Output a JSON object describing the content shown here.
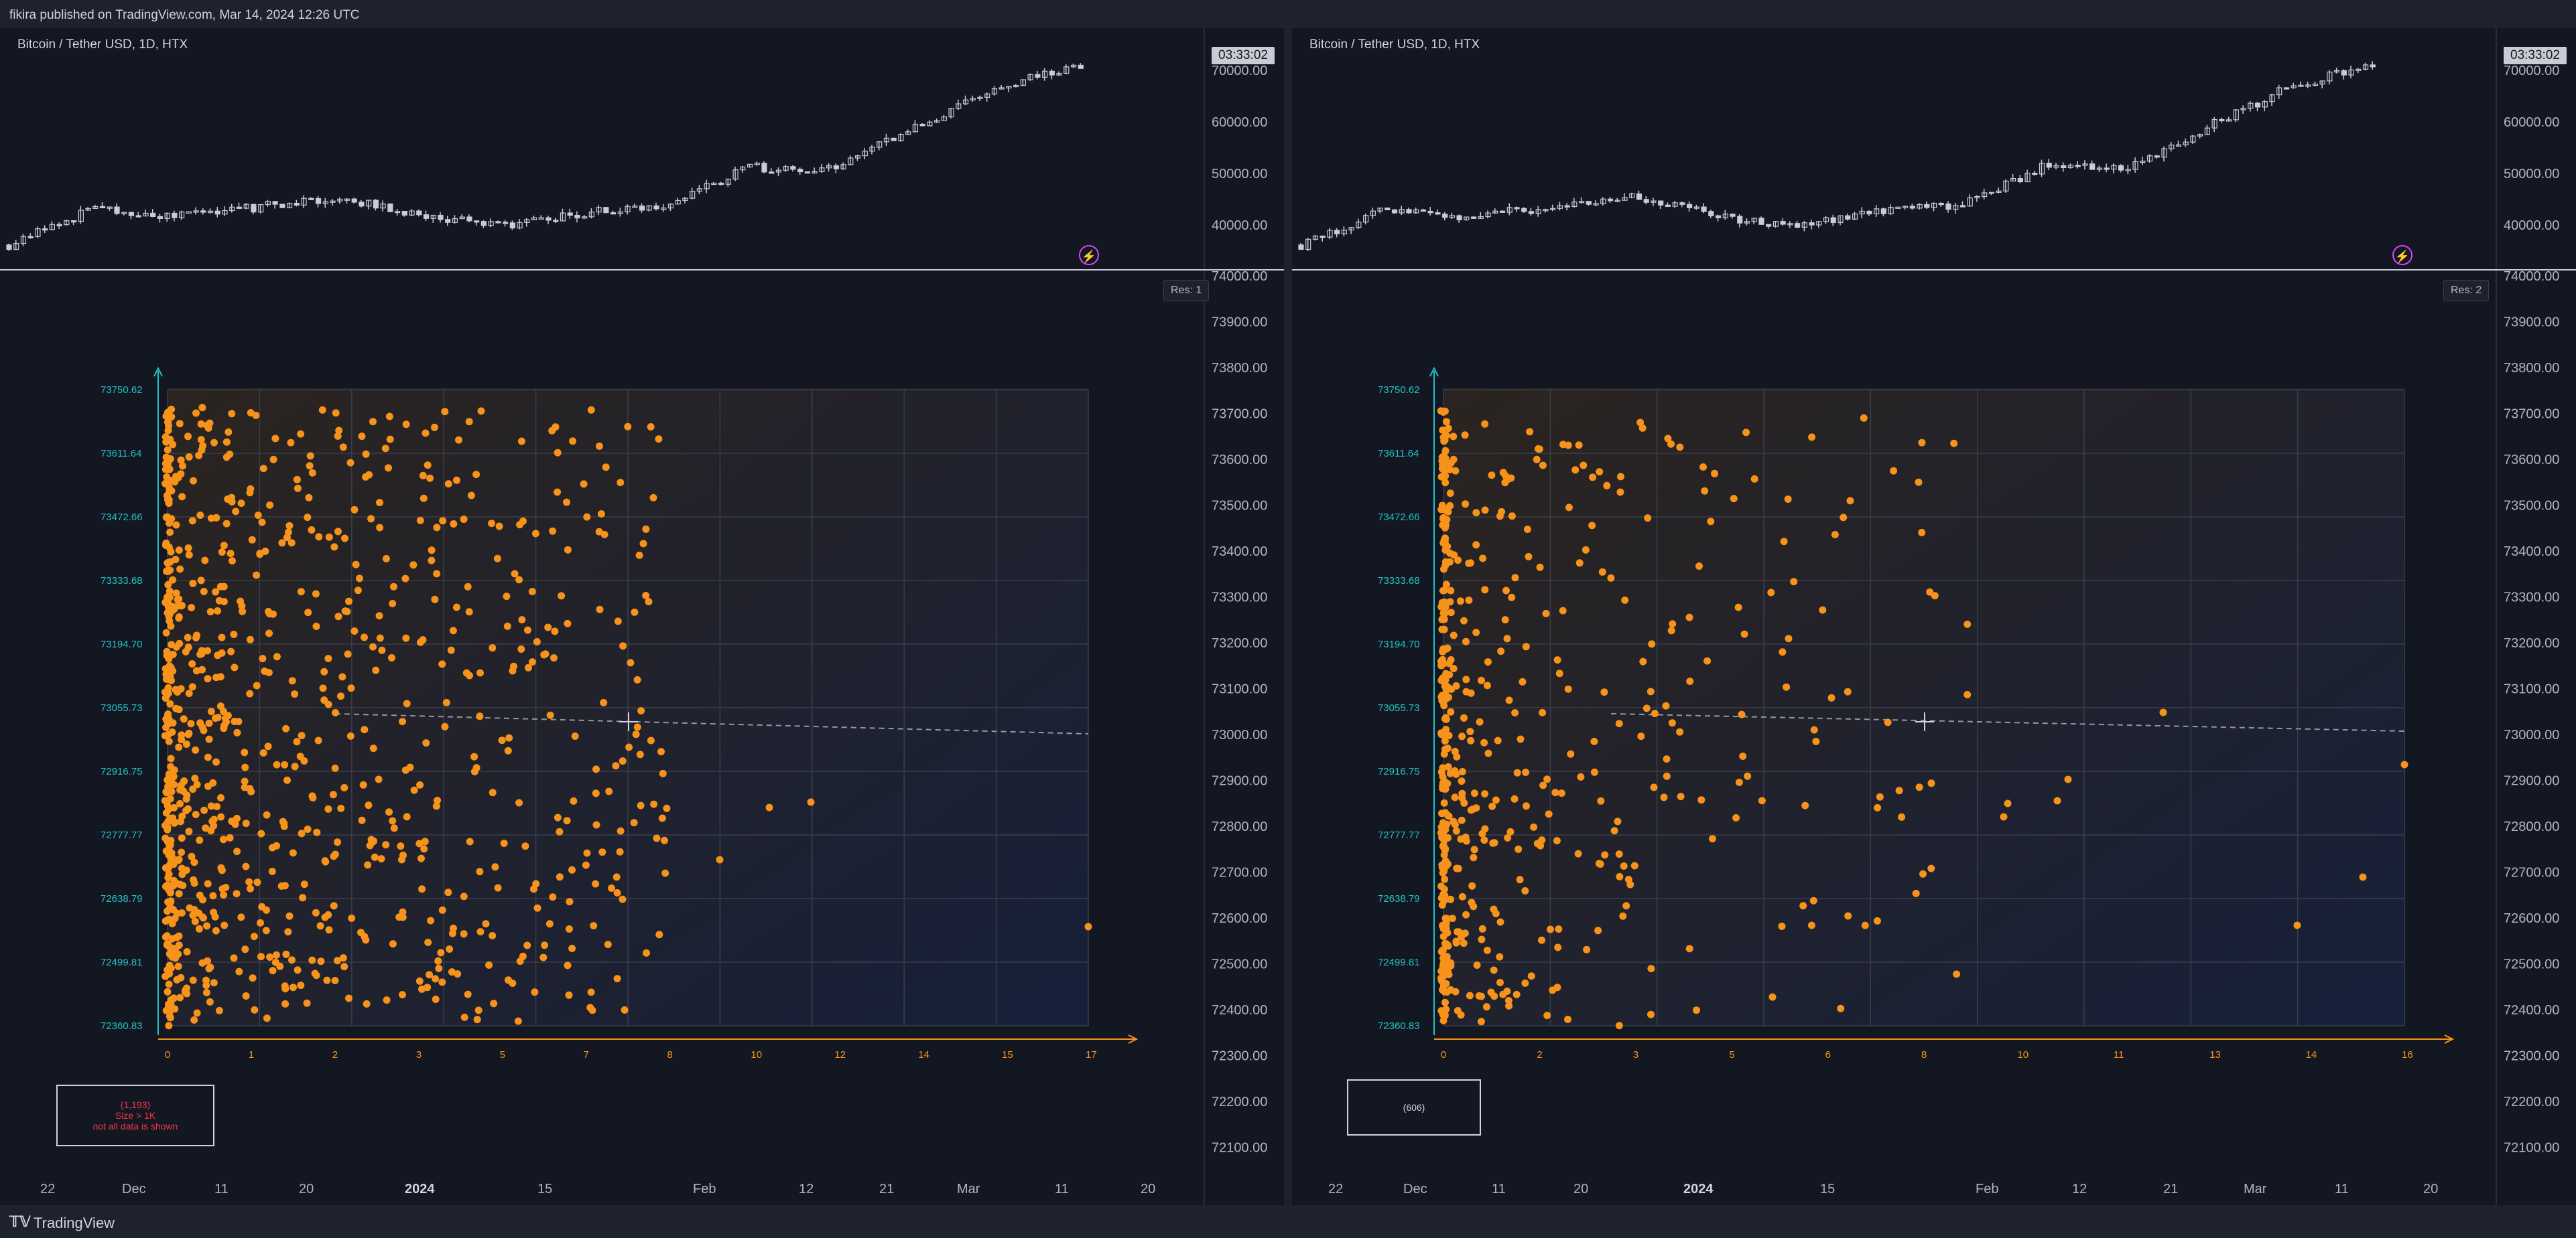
{
  "header": {
    "published": "fikira published on TradingView.com, Mar 14, 2024 12:26 UTC"
  },
  "footer": {
    "brand": "TradingView",
    "logo_icon": "tradingview-logo-icon"
  },
  "panels": [
    {
      "symbol": "Bitcoin / Tether USD, 1D, HTX",
      "countdown": "03:33:02",
      "res": "Res: 1",
      "info_lines": [
        "(1,193)",
        "Size > 1K",
        "not all data is shown"
      ],
      "x_ticks": [
        "0",
        "1",
        "2",
        "3",
        "5",
        "7",
        "8",
        "10",
        "12",
        "14",
        "15",
        "17"
      ]
    },
    {
      "symbol": "Bitcoin / Tether USD, 1D, HTX",
      "countdown": "03:33:02",
      "res": "Res: 2",
      "info_lines": [
        "(606)"
      ],
      "x_ticks": [
        "0",
        "2",
        "3",
        "5",
        "6",
        "8",
        "10",
        "11",
        "13",
        "14",
        "16"
      ]
    }
  ],
  "top_price_axis": [
    "70000.00",
    "60000.00",
    "50000.00",
    "40000.00"
  ],
  "right_price_axis": [
    "74000.00",
    "73900.00",
    "73800.00",
    "73700.00",
    "73600.00",
    "73500.00",
    "73400.00",
    "73300.00",
    "73200.00",
    "73100.00",
    "73000.00",
    "72900.00",
    "72800.00",
    "72700.00",
    "72600.00",
    "72500.00",
    "72400.00",
    "72300.00",
    "72200.00",
    "72100.00"
  ],
  "y_ticks": [
    "73750.62",
    "73611.64",
    "73472.66",
    "73333.68",
    "73194.70",
    "73055.73",
    "72916.75",
    "72777.77",
    "72638.79",
    "72499.81",
    "72360.83"
  ],
  "date_axis": [
    {
      "label": "22",
      "bold": false
    },
    {
      "label": "Dec",
      "bold": false
    },
    {
      "label": "11",
      "bold": false
    },
    {
      "label": "20",
      "bold": false
    },
    {
      "label": "2024",
      "bold": true
    },
    {
      "label": "15",
      "bold": false
    },
    {
      "label": "Feb",
      "bold": false
    },
    {
      "label": "12",
      "bold": false
    },
    {
      "label": "21",
      "bold": false
    },
    {
      "label": "Mar",
      "bold": false
    },
    {
      "label": "11",
      "bold": false
    },
    {
      "label": "20",
      "bold": false
    }
  ],
  "colors": {
    "background": "#131722",
    "dot": "#f7931a",
    "y_axis": "#22c1c3",
    "x_axis": "#f7931a",
    "candle": "#c9ccd4",
    "alert_text": "#f23645"
  },
  "chart_data": [
    {
      "type": "scatter",
      "title": "",
      "series": [
        {
          "points_shown": "dense cluster near x 0–3, sparse to x 17"
        }
      ],
      "ylim": [
        72360.83,
        73750.62
      ]
    },
    {
      "type": "scatter",
      "title": "",
      "series": [
        {
          "points_shown": "cluster near x 0–6, sparse to x 16"
        }
      ],
      "ylim": [
        72360.83,
        73750.62
      ]
    }
  ]
}
